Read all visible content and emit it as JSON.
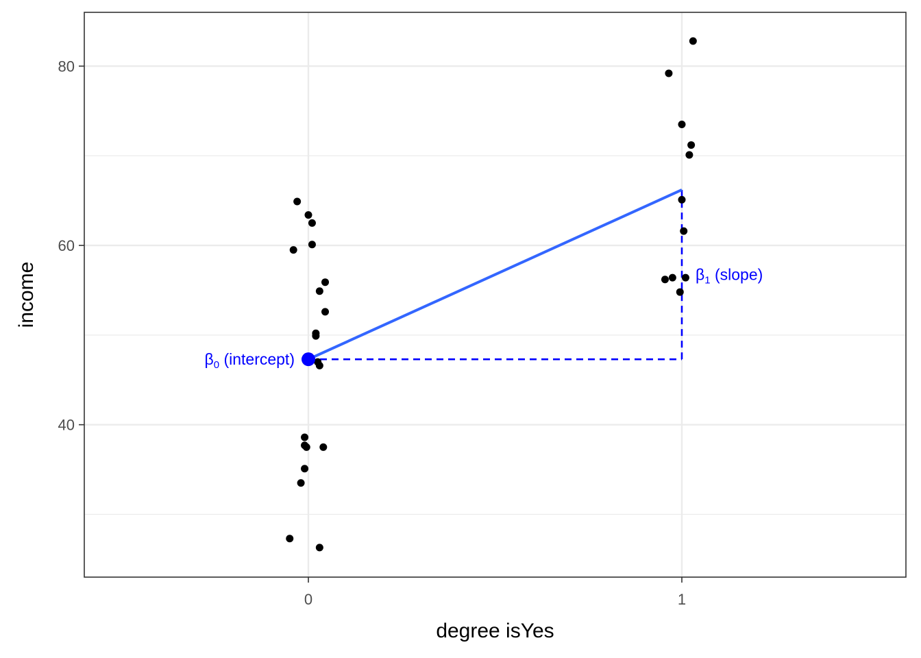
{
  "chart_data": {
    "type": "scatter",
    "xlabel": "degree isYes",
    "ylabel": "income",
    "xlim": [
      -0.6,
      1.6
    ],
    "ylim": [
      23,
      86
    ],
    "x_ticks": [
      {
        "value": 0,
        "label": "0"
      },
      {
        "value": 1,
        "label": "1"
      }
    ],
    "y_ticks": [
      {
        "value": 40,
        "label": "40"
      },
      {
        "value": 60,
        "label": "60"
      },
      {
        "value": 80,
        "label": "80"
      }
    ],
    "y_minor_gridlines": [
      30,
      50,
      70
    ],
    "grid": true,
    "points": [
      {
        "x": -0.05,
        "y": 27.3
      },
      {
        "x": 0.03,
        "y": 26.3
      },
      {
        "x": -0.02,
        "y": 33.5
      },
      {
        "x": -0.01,
        "y": 35.1
      },
      {
        "x": -0.01,
        "y": 37.7
      },
      {
        "x": -0.005,
        "y": 37.5
      },
      {
        "x": 0.04,
        "y": 37.5
      },
      {
        "x": -0.01,
        "y": 38.6
      },
      {
        "x": 0.03,
        "y": 46.6
      },
      {
        "x": 0.025,
        "y": 47.0
      },
      {
        "x": 0.02,
        "y": 49.9
      },
      {
        "x": 0.02,
        "y": 50.2
      },
      {
        "x": 0.045,
        "y": 52.6
      },
      {
        "x": 0.03,
        "y": 54.9
      },
      {
        "x": 0.045,
        "y": 55.9
      },
      {
        "x": -0.04,
        "y": 59.5
      },
      {
        "x": 0.01,
        "y": 60.1
      },
      {
        "x": 0.01,
        "y": 62.5
      },
      {
        "x": 0.0,
        "y": 63.4
      },
      {
        "x": -0.03,
        "y": 64.9
      },
      {
        "x": 0.995,
        "y": 54.8
      },
      {
        "x": 0.955,
        "y": 56.2
      },
      {
        "x": 0.975,
        "y": 56.4
      },
      {
        "x": 1.01,
        "y": 56.4
      },
      {
        "x": 1.005,
        "y": 61.6
      },
      {
        "x": 1.0,
        "y": 65.1
      },
      {
        "x": 1.02,
        "y": 70.1
      },
      {
        "x": 1.025,
        "y": 71.2
      },
      {
        "x": 1.0,
        "y": 73.5
      },
      {
        "x": 0.965,
        "y": 79.2
      },
      {
        "x": 1.03,
        "y": 82.8
      }
    ],
    "fit_line": {
      "x": [
        0,
        1
      ],
      "y": [
        47.3,
        66.2
      ]
    },
    "intercept_point": {
      "x": 0,
      "y": 47.3
    },
    "annotations": {
      "intercept": {
        "beta": "β",
        "sub": "0",
        "text": " (intercept)"
      },
      "slope": {
        "beta": "β",
        "sub": "1",
        "text": " (slope)"
      }
    }
  },
  "colors": {
    "points": "#000000",
    "fit_line": "#3366ff",
    "annotation": "#0000ff",
    "grid": "#ebebeb",
    "panel_border": "#333333"
  }
}
